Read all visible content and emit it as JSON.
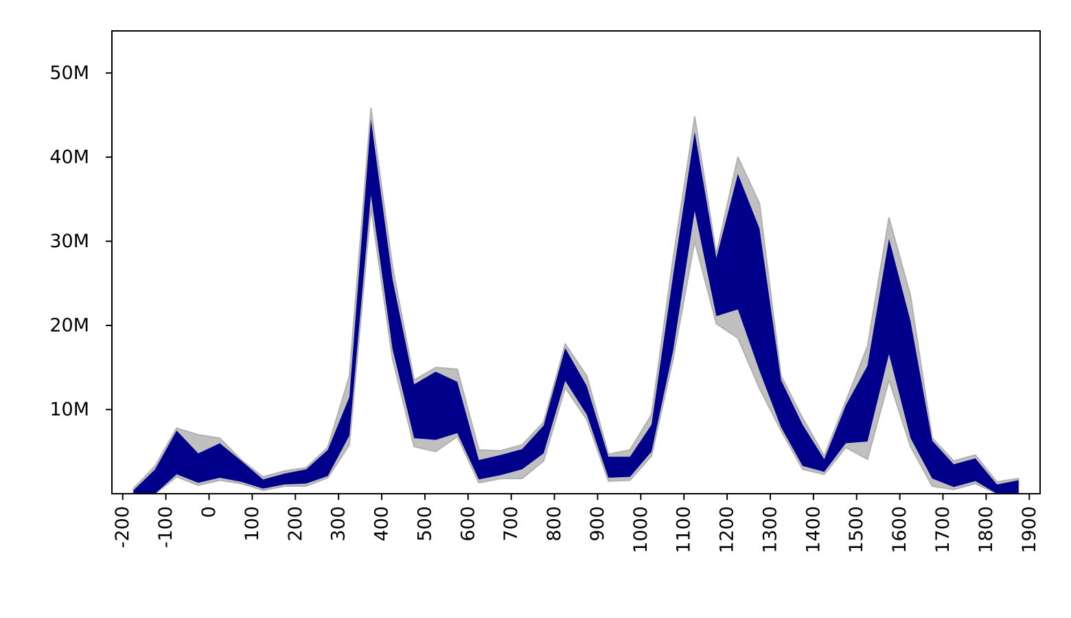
{
  "chart_data": {
    "type": "area",
    "title": "",
    "xlabel": "",
    "ylabel": "",
    "xlim": [
      -225,
      1925
    ],
    "ylim": [
      0,
      55000000
    ],
    "grid": false,
    "legend": "none",
    "x_ticks": [
      -200,
      -100,
      0,
      100,
      200,
      300,
      400,
      500,
      600,
      700,
      800,
      900,
      1000,
      1100,
      1200,
      1300,
      1400,
      1500,
      1600,
      1700,
      1800,
      1900
    ],
    "x_tick_labels": [
      "-200",
      "-100",
      "0",
      "100",
      "200",
      "300",
      "400",
      "500",
      "600",
      "700",
      "800",
      "900",
      "1000",
      "1100",
      "1200",
      "1300",
      "1400",
      "1500",
      "1600",
      "1700",
      "1800",
      "1900"
    ],
    "y_ticks": [
      10000000,
      20000000,
      30000000,
      40000000,
      50000000
    ],
    "y_tick_labels": [
      "10M",
      "20M",
      "30M",
      "40M",
      "50M"
    ],
    "x": [
      -175,
      -125,
      -75,
      -25,
      25,
      75,
      125,
      175,
      225,
      275,
      325,
      375,
      425,
      475,
      525,
      575,
      625,
      675,
      725,
      775,
      825,
      875,
      925,
      975,
      1025,
      1075,
      1125,
      1175,
      1225,
      1275,
      1325,
      1375,
      1425,
      1475,
      1525,
      1575,
      1625,
      1675,
      1725,
      1775,
      1825,
      1875
    ],
    "series": [
      {
        "role": "outer-range",
        "color": "#c0c0c0",
        "upper": [
          600000,
          3300000,
          7800000,
          7000000,
          6600000,
          4000000,
          2000000,
          2700000,
          3100000,
          5500000,
          14000000,
          45800000,
          27000000,
          13500000,
          15000000,
          14800000,
          5200000,
          5100000,
          5800000,
          8500000,
          17800000,
          14000000,
          4700000,
          5200000,
          9400000,
          28000000,
          44800000,
          28500000,
          40000000,
          34500000,
          14000000,
          9000000,
          4500000,
          11000000,
          17500000,
          32800000,
          23500000,
          6600000,
          3900000,
          4600000,
          1400000,
          1800000
        ],
        "lower": [
          0,
          0,
          2000000,
          1000000,
          1600000,
          1200000,
          400000,
          900000,
          900000,
          1900000,
          5800000,
          34000000,
          16000000,
          5600000,
          5000000,
          6800000,
          1300000,
          1800000,
          1800000,
          3900000,
          12600000,
          8800000,
          1500000,
          1600000,
          4500000,
          16000000,
          30000000,
          20200000,
          18500000,
          12500000,
          7500000,
          2900000,
          2300000,
          5500000,
          4100000,
          13500000,
          5600000,
          900000,
          500000,
          1200000,
          0,
          0
        ]
      },
      {
        "role": "inner-range",
        "color": "#00008b",
        "upper": [
          400000,
          2900000,
          7500000,
          4800000,
          6000000,
          3900000,
          1700000,
          2400000,
          2900000,
          5200000,
          11500000,
          44500000,
          25500000,
          13000000,
          14500000,
          13300000,
          4000000,
          4600000,
          5300000,
          8100000,
          17300000,
          12800000,
          4400000,
          4400000,
          8200000,
          26000000,
          43000000,
          28000000,
          38000000,
          31500000,
          13500000,
          8200000,
          4100000,
          10500000,
          15200000,
          30300000,
          20500000,
          6300000,
          3500000,
          4200000,
          1100000,
          1600000
        ],
        "lower": [
          0,
          0,
          2300000,
          1300000,
          1900000,
          1400000,
          600000,
          1100000,
          1200000,
          2100000,
          6900000,
          35500000,
          17200000,
          6600000,
          6400000,
          7200000,
          1700000,
          2200000,
          2900000,
          4800000,
          13400000,
          9400000,
          1900000,
          2000000,
          5000000,
          17000000,
          33600000,
          21100000,
          21900000,
          14600000,
          7900000,
          3300000,
          2600000,
          6000000,
          6200000,
          16600000,
          6600000,
          1800000,
          800000,
          1500000,
          0,
          0
        ]
      }
    ]
  }
}
